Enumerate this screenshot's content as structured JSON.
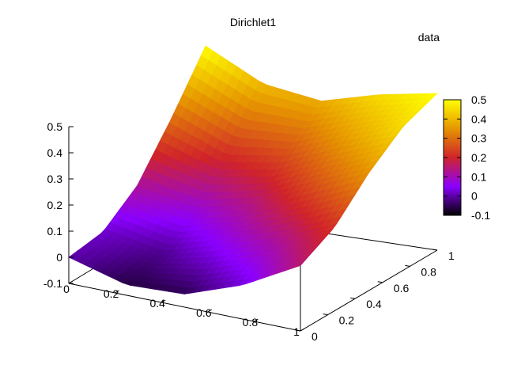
{
  "chart_data": {
    "type": "surface",
    "title": "Dirichlet1",
    "legend_key": "data",
    "x_ticks": [
      "0",
      "0.2",
      "0.4",
      "0.6",
      "0.8",
      "1"
    ],
    "y_ticks": [
      "0",
      "0.2",
      "0.4",
      "0.6",
      "0.8",
      "1"
    ],
    "z_ticks": [
      "-0.1",
      "0",
      "0.1",
      "0.2",
      "0.3",
      "0.4",
      "0.5"
    ],
    "colorbar_ticks": [
      "-0.1",
      "0",
      "0.1",
      "0.2",
      "0.3",
      "0.4",
      "0.5"
    ],
    "xlim": [
      0,
      1
    ],
    "ylim": [
      0,
      1
    ],
    "zlim": [
      -0.1,
      0.5
    ],
    "colorbar_range": [
      -0.1,
      0.5
    ],
    "palette": [
      "#000000",
      "#8b00ff",
      "#d0232a",
      "#e69500",
      "#ffff00"
    ],
    "grid": false,
    "surface_samples": {
      "u": [
        0,
        0.25,
        0.5,
        0.75,
        1
      ],
      "v": [
        0,
        0.25,
        0.5,
        0.75,
        1
      ],
      "z": [
        [
          0.0,
          -0.06,
          -0.05,
          0.03,
          0.15
        ],
        [
          0.02,
          -0.02,
          0.05,
          0.12,
          0.22
        ],
        [
          0.12,
          0.08,
          0.14,
          0.25,
          0.35
        ],
        [
          0.3,
          0.22,
          0.26,
          0.36,
          0.45
        ],
        [
          0.5,
          0.4,
          0.38,
          0.45,
          0.5
        ]
      ]
    }
  }
}
